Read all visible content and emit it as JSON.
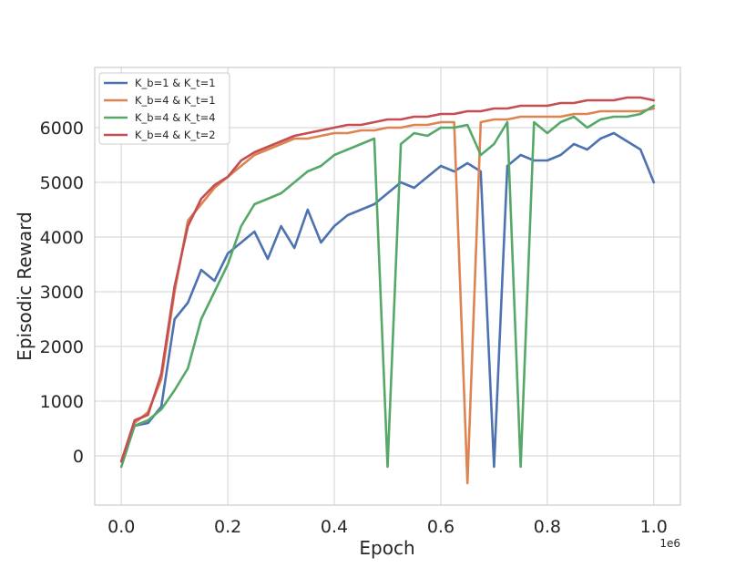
{
  "chart_data": {
    "type": "line",
    "title": "",
    "xlabel": "Epoch",
    "ylabel": "Episodic Reward",
    "x_offset_label": "1e6",
    "xlim": [
      -0.05,
      1.05
    ],
    "ylim": [
      -900,
      7100
    ],
    "xticks": [
      0.0,
      0.2,
      0.4,
      0.6,
      0.8,
      1.0
    ],
    "xtick_labels": [
      "0.0",
      "0.2",
      "0.4",
      "0.6",
      "0.8",
      "1.0"
    ],
    "yticks": [
      0,
      1000,
      2000,
      3000,
      4000,
      5000,
      6000
    ],
    "ytick_labels": [
      "0",
      "1000",
      "2000",
      "3000",
      "4000",
      "5000",
      "6000"
    ],
    "grid": true,
    "legend_position": "top-left",
    "x": [
      0.0,
      0.025,
      0.05,
      0.075,
      0.1,
      0.125,
      0.15,
      0.175,
      0.2,
      0.225,
      0.25,
      0.275,
      0.3,
      0.325,
      0.35,
      0.375,
      0.4,
      0.425,
      0.45,
      0.475,
      0.5,
      0.525,
      0.55,
      0.575,
      0.6,
      0.625,
      0.65,
      0.675,
      0.7,
      0.725,
      0.75,
      0.775,
      0.8,
      0.825,
      0.85,
      0.875,
      0.9,
      0.925,
      0.95,
      0.975,
      1.0
    ],
    "series": [
      {
        "name": "K_b=1 & K_t=1",
        "color": "#4c72b0",
        "values": [
          -100,
          550,
          600,
          900,
          2500,
          2800,
          3400,
          3200,
          3700,
          3900,
          4100,
          3600,
          4200,
          3800,
          4500,
          3900,
          4200,
          4400,
          4500,
          4600,
          4800,
          5000,
          4900,
          5100,
          5300,
          5200,
          5350,
          5200,
          -200,
          5300,
          5500,
          5400,
          5400,
          5500,
          5700,
          5600,
          5800,
          5900,
          5750,
          5600,
          5000
        ]
      },
      {
        "name": "K_b=4 & K_t=1",
        "color": "#dd8452",
        "values": [
          -100,
          600,
          800,
          1400,
          3000,
          4300,
          4600,
          4900,
          5100,
          5300,
          5500,
          5600,
          5700,
          5800,
          5800,
          5850,
          5900,
          5900,
          5950,
          5950,
          6000,
          6000,
          6050,
          6050,
          6100,
          6100,
          -500,
          6100,
          6150,
          6150,
          6200,
          6200,
          6200,
          6200,
          6250,
          6250,
          6300,
          6300,
          6300,
          6300,
          6350
        ]
      },
      {
        "name": "K_b=4 & K_t=4",
        "color": "#55a868",
        "values": [
          -200,
          550,
          650,
          850,
          1200,
          1600,
          2500,
          3000,
          3500,
          4200,
          4600,
          4700,
          4800,
          5000,
          5200,
          5300,
          5500,
          5600,
          5700,
          5800,
          -200,
          5700,
          5900,
          5850,
          6000,
          6000,
          6050,
          5500,
          5700,
          6100,
          -200,
          6100,
          5900,
          6100,
          6200,
          6000,
          6150,
          6200,
          6200,
          6250,
          6400
        ]
      },
      {
        "name": "K_b=4 & K_t=2",
        "color": "#c44e52",
        "values": [
          -100,
          650,
          750,
          1500,
          3100,
          4200,
          4700,
          4950,
          5100,
          5400,
          5550,
          5650,
          5750,
          5850,
          5900,
          5950,
          6000,
          6050,
          6050,
          6100,
          6150,
          6150,
          6200,
          6200,
          6250,
          6250,
          6300,
          6300,
          6350,
          6350,
          6400,
          6400,
          6400,
          6450,
          6450,
          6500,
          6500,
          6500,
          6550,
          6550,
          6500
        ]
      }
    ]
  }
}
